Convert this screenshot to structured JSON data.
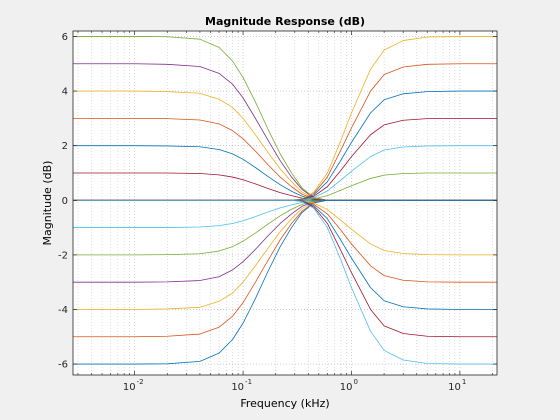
{
  "chart_data": {
    "type": "line",
    "title": "Magnitude Response (dB)",
    "xlabel": "Frequency (kHz)",
    "ylabel": "Magnitude (dB)",
    "x_scale": "log",
    "xlim": [
      0.0027,
      22
    ],
    "ylim": [
      -6.4,
      6.2
    ],
    "grid": true,
    "minor_grid_x": true,
    "x_ticks": [
      {
        "base": "10",
        "exp": "-2",
        "value": 0.01
      },
      {
        "base": "10",
        "exp": "-1",
        "value": 0.1
      },
      {
        "base": "10",
        "exp": "0",
        "value": 1
      },
      {
        "base": "10",
        "exp": "1",
        "value": 10
      }
    ],
    "y_ticks": [
      {
        "label": "-6",
        "value": -6
      },
      {
        "label": "-4",
        "value": -4
      },
      {
        "label": "-2",
        "value": -2
      },
      {
        "label": "0",
        "value": 0
      },
      {
        "label": "2",
        "value": 2
      },
      {
        "label": "4",
        "value": 4
      },
      {
        "label": "6",
        "value": 6
      }
    ],
    "x": [
      0.0027,
      0.005,
      0.01,
      0.02,
      0.04,
      0.06,
      0.08,
      0.1,
      0.13,
      0.17,
      0.22,
      0.28,
      0.35,
      0.45,
      0.6,
      0.8,
      1.0,
      1.5,
      2,
      3,
      5,
      10,
      22
    ],
    "series": [
      {
        "color": "#77AC30",
        "values": [
          6,
          6,
          6,
          5.99,
          5.9,
          5.6,
          5.1,
          4.5,
          3.6,
          2.6,
          1.7,
          1.0,
          0.45,
          0.1,
          0,
          0,
          0,
          0,
          0,
          0,
          0,
          0,
          0
        ]
      },
      {
        "color": "#7E2F8E",
        "values": [
          5,
          5,
          5,
          4.98,
          4.9,
          4.65,
          4.25,
          3.75,
          3.0,
          2.2,
          1.45,
          0.85,
          0.4,
          0.08,
          0,
          0,
          0,
          0,
          0,
          0,
          0,
          0,
          0
        ]
      },
      {
        "color": "#EDB120",
        "values": [
          4,
          4,
          4,
          3.98,
          3.92,
          3.7,
          3.4,
          3.0,
          2.4,
          1.75,
          1.15,
          0.68,
          0.3,
          0.06,
          0,
          0,
          0,
          0,
          0,
          0,
          0,
          0,
          0
        ]
      },
      {
        "color": "#D95319",
        "values": [
          3,
          3,
          3,
          2.99,
          2.94,
          2.8,
          2.55,
          2.25,
          1.8,
          1.3,
          0.85,
          0.5,
          0.22,
          0.05,
          0,
          0,
          0,
          0,
          0,
          0,
          0,
          0,
          0
        ]
      },
      {
        "color": "#0072BD",
        "values": [
          2,
          2,
          2,
          1.99,
          1.96,
          1.86,
          1.7,
          1.5,
          1.2,
          0.87,
          0.57,
          0.33,
          0.15,
          0.03,
          0,
          0,
          0,
          0,
          0,
          0,
          0,
          0,
          0
        ]
      },
      {
        "color": "#A2142F",
        "values": [
          1,
          1,
          1,
          1,
          0.98,
          0.93,
          0.85,
          0.75,
          0.6,
          0.43,
          0.28,
          0.17,
          0.08,
          0.02,
          0,
          0,
          0,
          0,
          0,
          0,
          0,
          0,
          0
        ]
      },
      {
        "color": "#4DBEEE",
        "values": [
          -1,
          -1,
          -1,
          -1,
          -0.98,
          -0.93,
          -0.85,
          -0.75,
          -0.6,
          -0.43,
          -0.28,
          -0.17,
          -0.08,
          -0.02,
          0,
          0,
          0,
          0,
          0,
          0,
          0,
          0,
          0
        ]
      },
      {
        "color": "#77AC30",
        "values": [
          -2,
          -2,
          -2,
          -1.99,
          -1.96,
          -1.86,
          -1.7,
          -1.5,
          -1.2,
          -0.87,
          -0.57,
          -0.33,
          -0.15,
          -0.03,
          0,
          0,
          0,
          0,
          0,
          0,
          0,
          0,
          0
        ]
      },
      {
        "color": "#7E2F8E",
        "values": [
          -3,
          -3,
          -3,
          -2.99,
          -2.94,
          -2.8,
          -2.55,
          -2.25,
          -1.8,
          -1.3,
          -0.85,
          -0.5,
          -0.22,
          -0.05,
          0,
          0,
          0,
          0,
          0,
          0,
          0,
          0,
          0
        ]
      },
      {
        "color": "#EDB120",
        "values": [
          -4,
          -4,
          -4,
          -3.98,
          -3.92,
          -3.7,
          -3.4,
          -3.0,
          -2.4,
          -1.75,
          -1.15,
          -0.68,
          -0.3,
          -0.06,
          0,
          0,
          0,
          0,
          0,
          0,
          0,
          0,
          0
        ]
      },
      {
        "color": "#D95319",
        "values": [
          -5,
          -5,
          -5,
          -4.98,
          -4.9,
          -4.65,
          -4.25,
          -3.75,
          -3.0,
          -2.2,
          -1.45,
          -0.85,
          -0.4,
          -0.08,
          0,
          0,
          0,
          0,
          0,
          0,
          0,
          0,
          0
        ]
      },
      {
        "color": "#0072BD",
        "values": [
          -6,
          -6,
          -6,
          -5.99,
          -5.9,
          -5.6,
          -5.1,
          -4.5,
          -3.6,
          -2.6,
          -1.7,
          -1.0,
          -0.45,
          -0.1,
          0,
          0,
          0,
          0,
          0,
          0,
          0,
          0,
          0
        ]
      },
      {
        "color": "#EDB120",
        "values": [
          0,
          0,
          0,
          0,
          0,
          0,
          0,
          0,
          0,
          0,
          0,
          0,
          0.05,
          0.3,
          1.0,
          2.2,
          3.2,
          4.8,
          5.5,
          5.85,
          5.98,
          6,
          6
        ]
      },
      {
        "color": "#D95319",
        "values": [
          0,
          0,
          0,
          0,
          0,
          0,
          0,
          0,
          0,
          0,
          0,
          0,
          0.04,
          0.25,
          0.85,
          1.85,
          2.65,
          4.0,
          4.6,
          4.88,
          4.98,
          5,
          5
        ]
      },
      {
        "color": "#0072BD",
        "values": [
          0,
          0,
          0,
          0,
          0,
          0,
          0,
          0,
          0,
          0,
          0,
          0,
          0.03,
          0.2,
          0.68,
          1.47,
          2.12,
          3.2,
          3.68,
          3.9,
          3.98,
          4,
          4
        ]
      },
      {
        "color": "#A2142F",
        "values": [
          0,
          0,
          0,
          0,
          0,
          0,
          0,
          0,
          0,
          0,
          0,
          0,
          0.02,
          0.15,
          0.5,
          1.1,
          1.6,
          2.4,
          2.76,
          2.93,
          2.99,
          3,
          3
        ]
      },
      {
        "color": "#4DBEEE",
        "values": [
          0,
          0,
          0,
          0,
          0,
          0,
          0,
          0,
          0,
          0,
          0,
          0,
          0.02,
          0.1,
          0.34,
          0.74,
          1.06,
          1.6,
          1.84,
          1.95,
          1.99,
          2,
          2
        ]
      },
      {
        "color": "#77AC30",
        "values": [
          0,
          0,
          0,
          0,
          0,
          0,
          0,
          0,
          0,
          0,
          0,
          0,
          0.01,
          0.05,
          0.17,
          0.37,
          0.53,
          0.8,
          0.92,
          0.98,
          1,
          1,
          1
        ]
      },
      {
        "color": "#0072BD",
        "values": [
          0,
          0,
          0,
          0,
          0,
          0,
          0,
          0,
          0,
          0,
          0,
          0,
          0,
          0,
          0,
          0,
          0,
          0,
          0,
          0,
          0,
          0,
          0
        ]
      },
      {
        "color": "#EDB120",
        "values": [
          0,
          0,
          0,
          0,
          0,
          0,
          0,
          0,
          0,
          0,
          0,
          0,
          -0.02,
          -0.1,
          -0.34,
          -0.74,
          -1.06,
          -1.6,
          -1.84,
          -1.95,
          -1.99,
          -2,
          -2
        ]
      },
      {
        "color": "#D95319",
        "values": [
          0,
          0,
          0,
          0,
          0,
          0,
          0,
          0,
          0,
          0,
          0,
          0,
          -0.02,
          -0.15,
          -0.5,
          -1.1,
          -1.6,
          -2.4,
          -2.76,
          -2.93,
          -2.99,
          -3,
          -3
        ]
      },
      {
        "color": "#0072BD",
        "values": [
          0,
          0,
          0,
          0,
          0,
          0,
          0,
          0,
          0,
          0,
          0,
          0,
          -0.03,
          -0.2,
          -0.68,
          -1.47,
          -2.12,
          -3.2,
          -3.68,
          -3.9,
          -3.98,
          -4,
          -4
        ]
      },
      {
        "color": "#A2142F",
        "values": [
          0,
          0,
          0,
          0,
          0,
          0,
          0,
          0,
          0,
          0,
          0,
          0,
          -0.04,
          -0.25,
          -0.85,
          -1.85,
          -2.65,
          -4.0,
          -4.6,
          -4.88,
          -4.98,
          -5,
          -5
        ]
      },
      {
        "color": "#4DBEEE",
        "values": [
          0,
          0,
          0,
          0,
          0,
          0,
          0,
          0,
          0,
          0,
          0,
          0,
          -0.05,
          -0.3,
          -1.0,
          -2.2,
          -3.2,
          -4.8,
          -5.5,
          -5.85,
          -5.98,
          -6,
          -6
        ]
      }
    ]
  }
}
